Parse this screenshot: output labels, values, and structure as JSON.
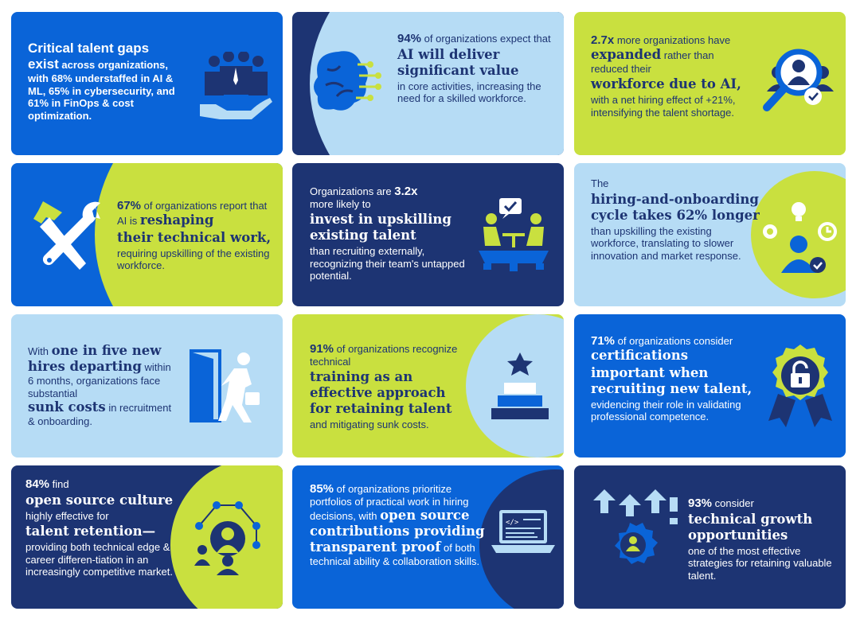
{
  "cards": [
    {
      "id": "talent-gaps",
      "p1": "Critical talent gaps",
      "p2": "exist",
      "p3": " across organizations, with 68% understaffed in AI & ML, 65% in cybersecurity, and 61% in FinOps & cost optimization.",
      "icon": "hands-people-icon"
    },
    {
      "id": "ai-value",
      "pct": "94%",
      "p1": " of organizations expect that",
      "big": "AI will deliver significant value",
      "p2": "in core activities, increasing the need for a skilled workforce.",
      "icon": "brain-circuit-icon"
    },
    {
      "id": "expanded-workforce",
      "pct": "2.7x",
      "p1": " more organizations have ",
      "big1": "expanded",
      "p2": " rather than reduced their",
      "big2": "workforce due to AI,",
      "p3": "with a net hiring effect of +21%, intensifying the talent shortage.",
      "icon": "magnifier-person-icon"
    },
    {
      "id": "reshaping-work",
      "pct": "67%",
      "p1": " of organizations report that AI is ",
      "big1": "reshaping",
      "big2": "their technical work,",
      "p2": "requiring upskilling of the existing workforce.",
      "icon": "hammer-wrench-icon"
    },
    {
      "id": "upskilling",
      "p1": "Organizations are ",
      "pct": "3.2x",
      "p2": "more likely to",
      "big": "invest in upskilling existing talent",
      "p3": "than recruiting externally, recognizing their team's untapped potential.",
      "icon": "meeting-gear-icon"
    },
    {
      "id": "hiring-cycle",
      "p1": "The",
      "big": "hiring-and-onboarding cycle takes 62% longer",
      "p2": "than upskilling the existing workforce, translating to slower innovation and market response.",
      "icon": "person-ideas-icon"
    },
    {
      "id": "new-hires",
      "p1": "With ",
      "big1": "one in five new hires departing",
      "p2": " within 6 months, organizations face substantial",
      "big2": "sunk costs",
      "p3": " in recruitment & onboarding.",
      "icon": "exit-door-icon"
    },
    {
      "id": "training",
      "pct": "91%",
      "p1": " of organizations recognize technical",
      "big": "training as an effective approach for retaining talent",
      "p2": "and mitigating sunk costs.",
      "icon": "podium-star-icon"
    },
    {
      "id": "certifications",
      "pct": "71%",
      "p1": " of organizations consider ",
      "big1": "certifications",
      "big2": "important when recruiting new talent,",
      "p2": "evidencing their role in validating professional competence.",
      "icon": "badge-lock-icon"
    },
    {
      "id": "open-source",
      "pct": "84%",
      "p1": " find",
      "big1": "open source culture",
      "p2": "highly effective for",
      "big2": "talent retention—",
      "p3": "providing both technical edge & career differen-tiation in an increasingly competitive market.",
      "icon": "network-person-icon"
    },
    {
      "id": "portfolios",
      "pct": "85%",
      "p1": " of organizations prioritize portfolios of practical work in hiring decisions, with ",
      "big1": "open source contributions providing transparent proof",
      "p2": " of both technical ability & collaboration skills.",
      "icon": "laptop-code-icon"
    },
    {
      "id": "growth",
      "pct": "93%",
      "p1": " consider",
      "big": "technical growth opportunities",
      "p2": "one of the most effective strategies for retaining valuable talent.",
      "icon": "arrows-gear-icon"
    }
  ],
  "colors": {
    "blue": "#0a64d8",
    "navy": "#1d3473",
    "lime": "#c9e03f",
    "light": "#b6dcf5"
  }
}
